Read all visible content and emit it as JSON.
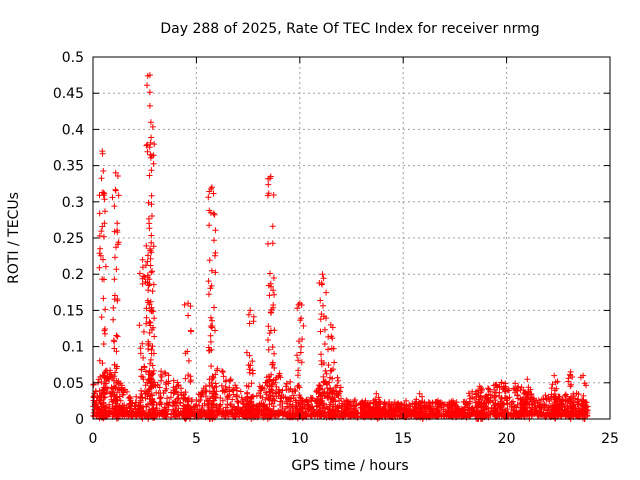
{
  "chart_data": {
    "type": "scatter",
    "title": "Day 288 of 2025, Rate Of TEC Index for receiver nrmg",
    "xlabel": "GPS time / hours",
    "ylabel": "ROTI / TECUs",
    "xlim": [
      0,
      25
    ],
    "ylim": [
      0,
      0.5
    ],
    "x_ticks": [
      0,
      5,
      10,
      15,
      20,
      25
    ],
    "y_ticks": [
      0,
      0.05,
      0.1,
      0.15,
      0.2,
      0.25,
      0.3,
      0.35,
      0.4,
      0.45,
      0.5
    ],
    "x_tick_labels": [
      "0",
      "5",
      "10",
      "15",
      "20",
      "25"
    ],
    "y_tick_labels": [
      "0",
      "0.05",
      "0.1",
      "0.15",
      "0.2",
      "0.25",
      "0.3",
      "0.35",
      "0.4",
      "0.45",
      "0.5"
    ],
    "grid": true,
    "marker": "+",
    "series": [
      {
        "name": "ROTI",
        "color": "#ff0000",
        "x_range": [
          0,
          24
        ],
        "baseline_roti": 0.01,
        "peak_events": [
          {
            "x": 0.45,
            "y": 0.37
          },
          {
            "x": 1.1,
            "y": 0.34
          },
          {
            "x": 2.4,
            "y": 0.22
          },
          {
            "x": 2.75,
            "y": 0.475
          },
          {
            "x": 2.8,
            "y": 0.41
          },
          {
            "x": 4.6,
            "y": 0.16
          },
          {
            "x": 5.75,
            "y": 0.32
          },
          {
            "x": 7.6,
            "y": 0.15
          },
          {
            "x": 8.6,
            "y": 0.335
          },
          {
            "x": 10.0,
            "y": 0.16
          },
          {
            "x": 11.1,
            "y": 0.2
          },
          {
            "x": 11.5,
            "y": 0.13
          },
          {
            "x": 13.7,
            "y": 0.035
          },
          {
            "x": 15.8,
            "y": 0.035
          },
          {
            "x": 18.7,
            "y": 0.045
          },
          {
            "x": 21.0,
            "y": 0.055
          },
          {
            "x": 22.3,
            "y": 0.06
          },
          {
            "x": 23.1,
            "y": 0.065
          },
          {
            "x": 23.7,
            "y": 0.06
          }
        ]
      }
    ]
  }
}
